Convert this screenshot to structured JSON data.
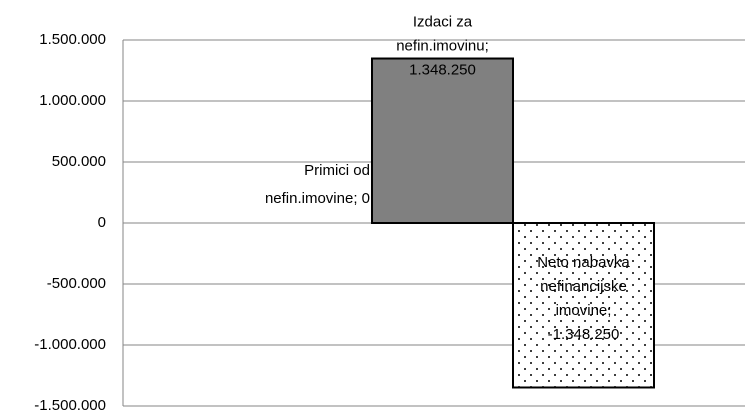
{
  "chart_data": {
    "type": "bar",
    "categories": [
      null,
      null,
      null
    ],
    "values": [
      0,
      1348250,
      -1348250
    ],
    "value_labels": [
      "Primici od nefin.imovine; 0",
      "Izdaci za nefin.imovinu; 1.348.250",
      "Neto nabavka nefinancijske imovine; -1.348.250"
    ],
    "colors": [
      "#808080",
      "#808080",
      "#ffffff"
    ],
    "hatches": [
      null,
      null,
      "dots"
    ],
    "ylim": [
      -1500000,
      1500000
    ],
    "yticks": [
      {
        "value": -1500000,
        "label": "-1.500.000"
      },
      {
        "value": -1000000,
        "label": "-1.000.000"
      },
      {
        "value": -500000,
        "label": "-500.000"
      },
      0,
      {
        "value": 500000,
        "label": "500.000"
      },
      {
        "value": 1000000,
        "label": "1.000.000"
      },
      {
        "value": 1500000,
        "label": "1.500.000"
      }
    ],
    "grid": true
  }
}
